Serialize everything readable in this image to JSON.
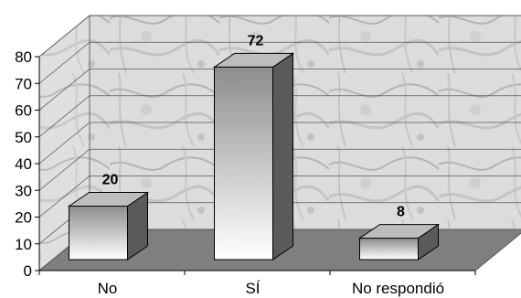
{
  "chart_data": {
    "type": "bar",
    "categories": [
      "No",
      "SÍ",
      "No respondió"
    ],
    "values": [
      20,
      72,
      8
    ],
    "data_labels": [
      "20",
      "72",
      "8"
    ],
    "ylim": [
      0,
      80
    ],
    "yticks": [
      0,
      10,
      20,
      30,
      40,
      50,
      60,
      70,
      80
    ],
    "ytick_labels": [
      "0",
      "10",
      "20",
      "30",
      "40",
      "50",
      "60",
      "70",
      "80"
    ],
    "title": "",
    "xlabel": "",
    "ylabel": "",
    "grid": true,
    "legend": "none",
    "style": "3d",
    "colors": {
      "bar_top": "#ffffff",
      "bar_bottom": "#8c8c8c",
      "bar_side": "#5a5a5a",
      "bar_cap": "#bdbdbd",
      "floor": "#7f7f7f",
      "wall": "#d6d6d6",
      "grid": "#555555"
    }
  }
}
